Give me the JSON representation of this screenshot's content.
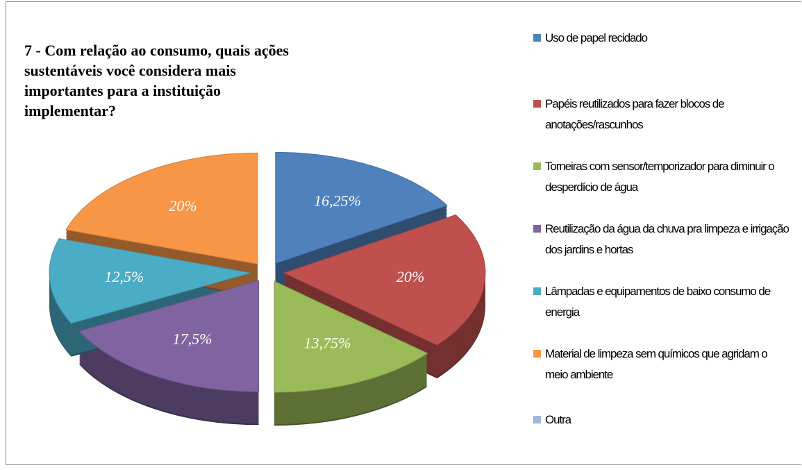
{
  "chart_data": {
    "type": "pie",
    "title": "7 - Com relação ao consumo, quais ações sustentáveis você considera mais importantes para a instituição implementar?",
    "categories": [
      "Uso de papel recidado",
      "Papéis reutilizados para fazer blocos de anotações/rascunhos",
      "Torneiras com sensor/temporizador para diminuir o desperdício de água",
      "Reutilização da água da chuva pra limpeza e irrigação dos jardins e hortas",
      "Lâmpadas e equipamentos de baixo consumo de energia",
      "Material de limpeza sem químicos que agridam o meio ambiente",
      "Outra"
    ],
    "values": [
      16.25,
      20,
      13.75,
      17.5,
      12.5,
      20,
      0
    ],
    "value_labels": [
      "16,25%",
      "20%",
      "13,75%",
      "17,5%",
      "12,5%",
      "20%",
      null
    ],
    "colors": [
      "#4f81bd",
      "#c0504d",
      "#9bbb59",
      "#8064a2",
      "#4bacc6",
      "#f79646",
      "#a5b4de"
    ],
    "legend": "right"
  }
}
